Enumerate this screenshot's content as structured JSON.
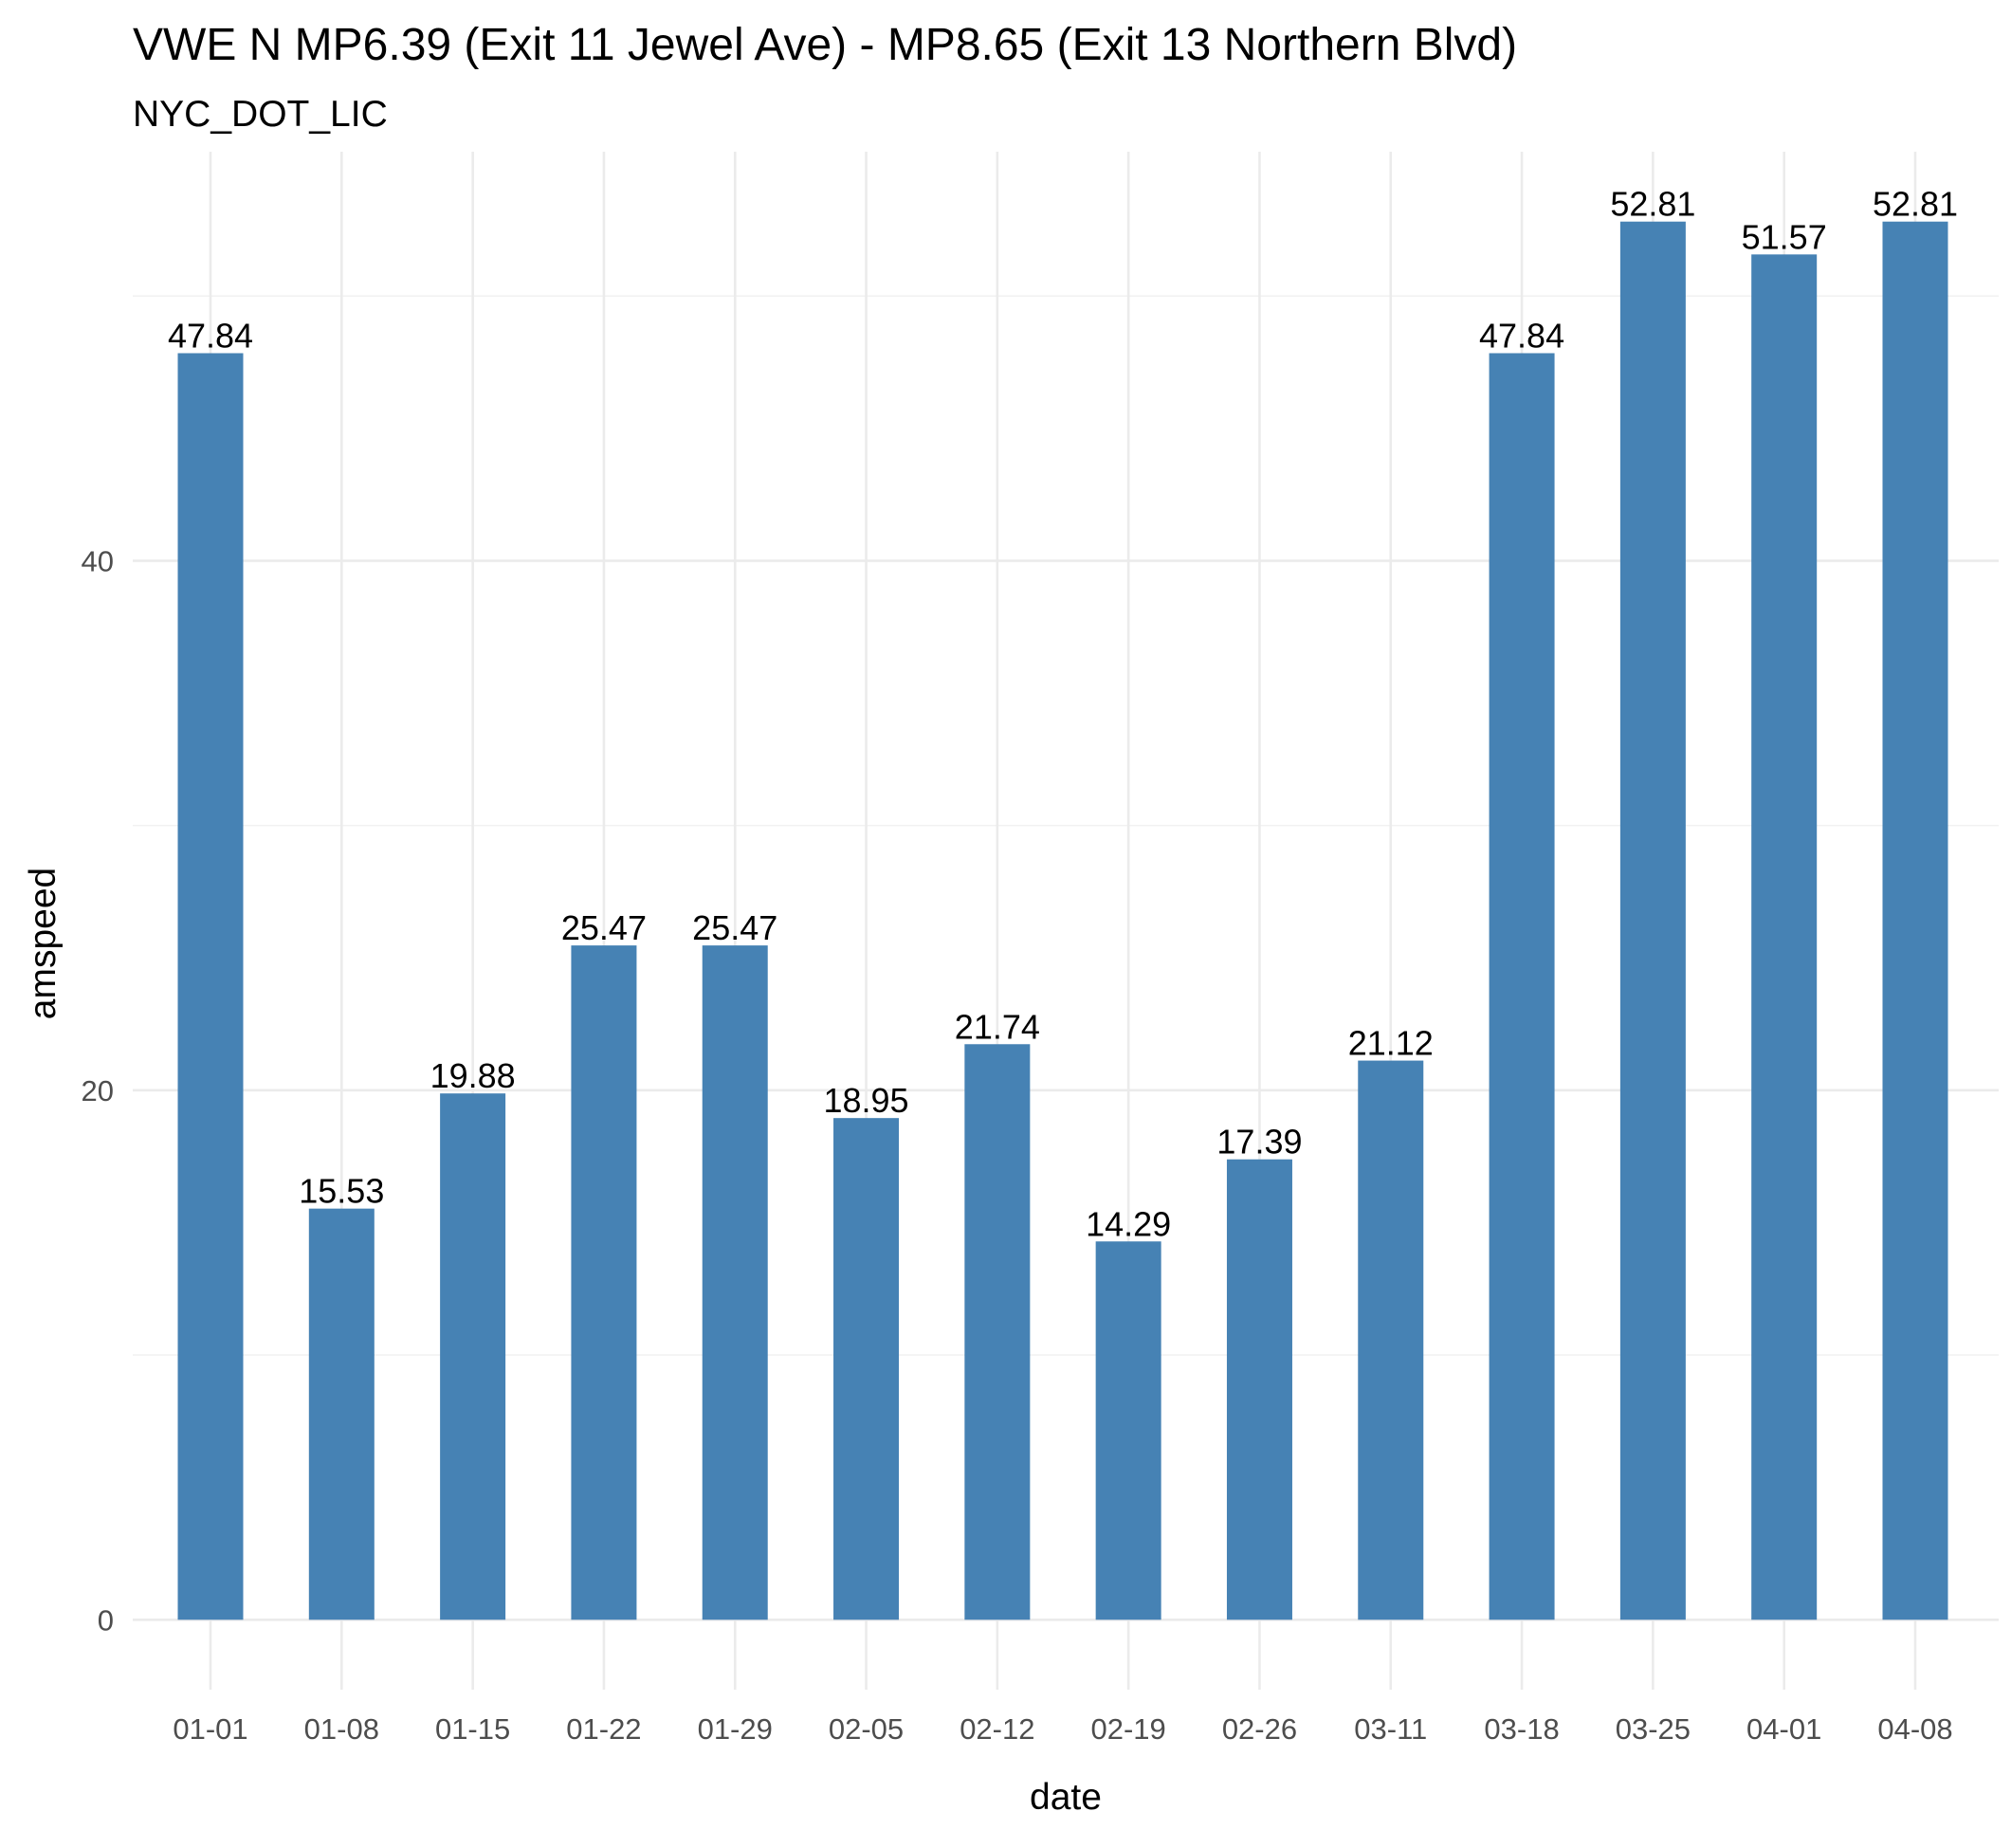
{
  "chart_data": {
    "type": "bar",
    "title": "VWE N MP6.39 (Exit 11 Jewel Ave) - MP8.65 (Exit 13 Northern Blvd)",
    "subtitle": "NYC_DOT_LIC",
    "xlabel": "date",
    "ylabel": "amspeed",
    "categories": [
      "01-01",
      "01-08",
      "01-15",
      "01-22",
      "01-29",
      "02-05",
      "02-12",
      "02-19",
      "02-26",
      "03-11",
      "03-18",
      "03-25",
      "04-01",
      "04-08"
    ],
    "values": [
      47.84,
      15.53,
      19.88,
      25.47,
      25.47,
      18.95,
      21.74,
      14.29,
      17.39,
      21.12,
      47.84,
      52.81,
      51.57,
      52.81
    ],
    "labels": [
      "47.84",
      "15.53",
      "19.88",
      "25.47",
      "25.47",
      "18.95",
      "21.74",
      "14.29",
      "17.39",
      "21.12",
      "47.84",
      "52.81",
      "51.57",
      "52.81"
    ],
    "yticks": [
      0,
      20,
      40
    ],
    "yticklabels": [
      "0",
      "20",
      "40"
    ],
    "yminor": [
      10,
      30,
      50
    ],
    "ylim": [
      -2.64,
      55.45
    ],
    "grid": true,
    "legend": "none",
    "bar_color": "#4682b4"
  }
}
